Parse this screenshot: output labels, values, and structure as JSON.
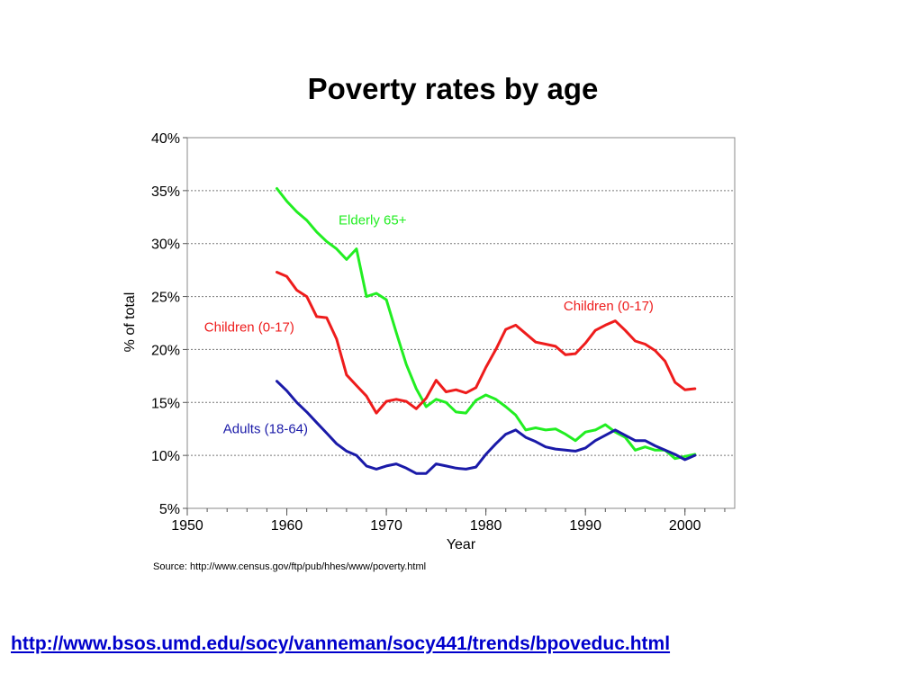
{
  "slide": {
    "source_text": "Source: http://www.census.gov/ftp/pub/hhes/www/poverty.html",
    "link_text": "http://www.bsos.umd.edu/socy/vanneman/socy441/trends/bpoveduc.html"
  },
  "chart_data": {
    "type": "line",
    "title": "Poverty rates by age",
    "xlabel": "Year",
    "ylabel": "% of total",
    "xlim": [
      1950,
      2005
    ],
    "ylim": [
      5,
      40
    ],
    "x_ticks": [
      1950,
      1960,
      1970,
      1980,
      1990,
      2000
    ],
    "x_tick_labels": [
      "1950",
      "1960",
      "1970",
      "1980",
      "1990",
      "2000"
    ],
    "y_ticks": [
      5,
      10,
      15,
      20,
      25,
      30,
      35,
      40
    ],
    "y_tick_labels": [
      "5%",
      "10%",
      "15%",
      "20%",
      "25%",
      "30%",
      "35%",
      "40%"
    ],
    "grid": "horizontal-dotted",
    "series": [
      {
        "name": "Elderly 65+",
        "color": "#22ee22",
        "x": [
          1959,
          1960,
          1961,
          1962,
          1963,
          1964,
          1965,
          1966,
          1967,
          1968,
          1969,
          1970,
          1971,
          1972,
          1973,
          1974,
          1975,
          1976,
          1977,
          1978,
          1979,
          1980,
          1981,
          1982,
          1983,
          1984,
          1985,
          1986,
          1987,
          1988,
          1989,
          1990,
          1991,
          1992,
          1993,
          1994,
          1995,
          1996,
          1997,
          1998,
          1999,
          2000,
          2001
        ],
        "values": [
          35.2,
          34.0,
          33.0,
          32.2,
          31.1,
          30.2,
          29.5,
          28.5,
          29.5,
          25.0,
          25.3,
          24.7,
          21.6,
          18.6,
          16.3,
          14.6,
          15.3,
          15.0,
          14.1,
          14.0,
          15.2,
          15.7,
          15.3,
          14.6,
          13.8,
          12.4,
          12.6,
          12.4,
          12.5,
          12.0,
          11.4,
          12.2,
          12.4,
          12.9,
          12.2,
          11.7,
          10.5,
          10.8,
          10.5,
          10.5,
          9.7,
          9.9,
          10.1
        ]
      },
      {
        "name": "Children (0-17)",
        "color": "#ee1c1c",
        "x": [
          1959,
          1960,
          1961,
          1962,
          1963,
          1964,
          1965,
          1966,
          1967,
          1968,
          1969,
          1970,
          1971,
          1972,
          1973,
          1974,
          1975,
          1976,
          1977,
          1978,
          1979,
          1980,
          1981,
          1982,
          1983,
          1984,
          1985,
          1986,
          1987,
          1988,
          1989,
          1990,
          1991,
          1992,
          1993,
          1994,
          1995,
          1996,
          1997,
          1998,
          1999,
          2000,
          2001
        ],
        "values": [
          27.3,
          26.9,
          25.6,
          25.0,
          23.1,
          23.0,
          21.0,
          17.6,
          16.6,
          15.6,
          14.0,
          15.1,
          15.3,
          15.1,
          14.4,
          15.4,
          17.1,
          16.0,
          16.2,
          15.9,
          16.4,
          18.3,
          20.0,
          21.9,
          22.3,
          21.5,
          20.7,
          20.5,
          20.3,
          19.5,
          19.6,
          20.6,
          21.8,
          22.3,
          22.7,
          21.8,
          20.8,
          20.5,
          19.9,
          18.9,
          16.9,
          16.2,
          16.3
        ]
      },
      {
        "name": "Adults (18-64)",
        "color": "#1a1aa8",
        "x": [
          1959,
          1960,
          1961,
          1962,
          1963,
          1964,
          1965,
          1966,
          1967,
          1968,
          1969,
          1970,
          1971,
          1972,
          1973,
          1974,
          1975,
          1976,
          1977,
          1978,
          1979,
          1980,
          1981,
          1982,
          1983,
          1984,
          1985,
          1986,
          1987,
          1988,
          1989,
          1990,
          1991,
          1992,
          1993,
          1994,
          1995,
          1996,
          1997,
          1998,
          1999,
          2000,
          2001
        ],
        "values": [
          17.0,
          16.1,
          15.0,
          14.1,
          13.1,
          12.1,
          11.1,
          10.4,
          10.0,
          9.0,
          8.7,
          9.0,
          9.2,
          8.8,
          8.3,
          8.3,
          9.2,
          9.0,
          8.8,
          8.7,
          8.9,
          10.1,
          11.1,
          12.0,
          12.4,
          11.7,
          11.3,
          10.8,
          10.6,
          10.5,
          10.4,
          10.7,
          11.4,
          11.9,
          12.4,
          11.9,
          11.4,
          11.4,
          10.9,
          10.5,
          10.1,
          9.6,
          10.0
        ]
      }
    ],
    "annotations": [
      {
        "text": "Elderly 65+",
        "x": 1965.2,
        "y": 31.8,
        "color": "#22ee22"
      },
      {
        "text": "Children (0-17)",
        "x": 1951.7,
        "y": 21.7,
        "color": "#ee1c1c"
      },
      {
        "text": "Children (0-17)",
        "x": 1987.8,
        "y": 23.7,
        "color": "#ee1c1c"
      },
      {
        "text": "Adults (18-64)",
        "x": 1953.6,
        "y": 12.1,
        "color": "#1a1aa8"
      }
    ]
  }
}
